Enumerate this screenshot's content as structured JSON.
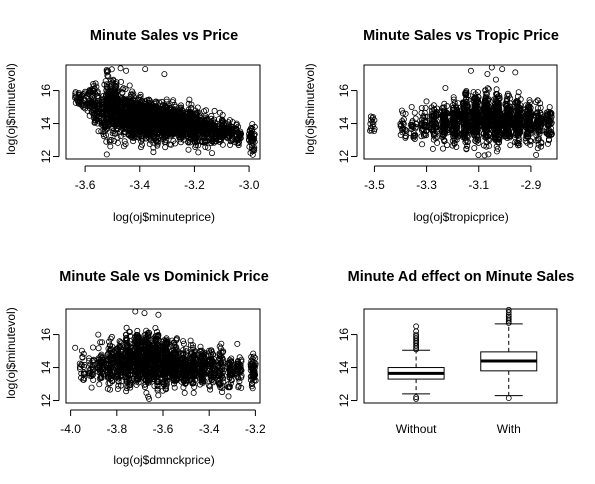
{
  "chart_data": [
    {
      "type": "scatter",
      "title": "Minute Sales vs Price",
      "xlabel": "log(oj$minuteprice)",
      "ylabel": "log(oj$minutevol)",
      "xlim": [
        -3.67,
        -2.96
      ],
      "ylim": [
        11.85,
        17.55
      ],
      "xticks": [
        -3.6,
        -3.4,
        -3.2,
        -3.0
      ],
      "xtick_labels": [
        "-3.6",
        "-3.4",
        "-3.2",
        "-3.0"
      ],
      "yticks": [
        12,
        14,
        16
      ],
      "ytick_labels": [
        "12",
        "14",
        "16"
      ],
      "marker": "open-circle",
      "color": "#000000",
      "trend": "negative",
      "clusters": [
        {
          "x": -3.63,
          "y_center": 15.6,
          "y_spread": 0.45,
          "n": 18
        },
        {
          "x": -3.61,
          "y_center": 15.5,
          "y_spread": 0.6,
          "n": 20
        },
        {
          "x": -3.58,
          "y_center": 15.4,
          "y_spread": 0.7,
          "n": 40
        },
        {
          "x": -3.56,
          "y_center": 15.0,
          "y_spread": 1.2,
          "n": 60
        },
        {
          "x": -3.53,
          "y_center": 14.8,
          "y_spread": 1.5,
          "n": 80
        },
        {
          "x": -3.51,
          "y_center": 15.0,
          "y_spread": 1.5,
          "n": 110
        },
        {
          "x": -3.49,
          "y_center": 14.8,
          "y_spread": 1.4,
          "n": 140
        },
        {
          "x": -3.46,
          "y_center": 14.5,
          "y_spread": 1.2,
          "n": 160
        },
        {
          "x": -3.43,
          "y_center": 14.4,
          "y_spread": 1.1,
          "n": 200
        },
        {
          "x": -3.4,
          "y_center": 14.3,
          "y_spread": 1.1,
          "n": 220
        },
        {
          "x": -3.37,
          "y_center": 14.2,
          "y_spread": 1.0,
          "n": 220
        },
        {
          "x": -3.34,
          "y_center": 14.1,
          "y_spread": 1.0,
          "n": 200
        },
        {
          "x": -3.31,
          "y_center": 14.1,
          "y_spread": 0.95,
          "n": 200
        },
        {
          "x": -3.28,
          "y_center": 14.0,
          "y_spread": 0.95,
          "n": 180
        },
        {
          "x": -3.25,
          "y_center": 13.9,
          "y_spread": 0.9,
          "n": 160
        },
        {
          "x": -3.22,
          "y_center": 13.9,
          "y_spread": 0.9,
          "n": 140
        },
        {
          "x": -3.19,
          "y_center": 13.8,
          "y_spread": 0.85,
          "n": 120
        },
        {
          "x": -3.16,
          "y_center": 13.7,
          "y_spread": 0.8,
          "n": 100
        },
        {
          "x": -3.13,
          "y_center": 13.6,
          "y_spread": 0.75,
          "n": 80
        },
        {
          "x": -3.1,
          "y_center": 13.6,
          "y_spread": 0.7,
          "n": 70
        },
        {
          "x": -3.07,
          "y_center": 13.5,
          "y_spread": 0.7,
          "n": 50
        },
        {
          "x": -3.04,
          "y_center": 13.3,
          "y_spread": 0.6,
          "n": 40
        },
        {
          "x": -2.99,
          "y_center": 13.1,
          "y_spread": 0.6,
          "n": 45
        }
      ],
      "outliers": [
        [
          -3.47,
          17.35
        ],
        [
          -3.45,
          17.2
        ],
        [
          -3.38,
          17.3
        ],
        [
          -3.31,
          17.0
        ],
        [
          -3.52,
          17.1
        ]
      ]
    },
    {
      "type": "scatter",
      "title": "Minute Sales vs Tropic Price",
      "xlabel": "log(oj$tropicprice)",
      "ylabel": "log(oj$minutevol)",
      "xlim": [
        -3.54,
        -2.8
      ],
      "ylim": [
        11.85,
        17.55
      ],
      "xticks": [
        -3.5,
        -3.3,
        -3.1,
        -2.9
      ],
      "xtick_labels": [
        "-3.5",
        "-3.3",
        "-3.1",
        "-2.9"
      ],
      "yticks": [
        12,
        14,
        16
      ],
      "ytick_labels": [
        "12",
        "14",
        "16"
      ],
      "marker": "open-circle",
      "color": "#000000",
      "trend": "none",
      "clusters": [
        {
          "x": -3.51,
          "y_center": 13.9,
          "y_spread": 0.7,
          "n": 14
        },
        {
          "x": -3.39,
          "y_center": 14.0,
          "y_spread": 0.9,
          "n": 20
        },
        {
          "x": -3.35,
          "y_center": 13.8,
          "y_spread": 0.9,
          "n": 25
        },
        {
          "x": -3.31,
          "y_center": 13.9,
          "y_spread": 1.0,
          "n": 40
        },
        {
          "x": -3.27,
          "y_center": 14.0,
          "y_spread": 1.0,
          "n": 60
        },
        {
          "x": -3.23,
          "y_center": 14.0,
          "y_spread": 1.1,
          "n": 90
        },
        {
          "x": -3.19,
          "y_center": 14.1,
          "y_spread": 1.2,
          "n": 120
        },
        {
          "x": -3.15,
          "y_center": 14.2,
          "y_spread": 1.3,
          "n": 160
        },
        {
          "x": -3.11,
          "y_center": 14.3,
          "y_spread": 1.3,
          "n": 200
        },
        {
          "x": -3.07,
          "y_center": 14.3,
          "y_spread": 1.3,
          "n": 220
        },
        {
          "x": -3.03,
          "y_center": 14.3,
          "y_spread": 1.3,
          "n": 220
        },
        {
          "x": -2.99,
          "y_center": 14.2,
          "y_spread": 1.2,
          "n": 200
        },
        {
          "x": -2.95,
          "y_center": 14.1,
          "y_spread": 1.1,
          "n": 150
        },
        {
          "x": -2.91,
          "y_center": 14.0,
          "y_spread": 1.0,
          "n": 110
        },
        {
          "x": -2.87,
          "y_center": 14.0,
          "y_spread": 1.0,
          "n": 80
        },
        {
          "x": -2.83,
          "y_center": 14.0,
          "y_spread": 1.0,
          "n": 60
        }
      ],
      "outliers": [
        [
          -3.05,
          17.4
        ],
        [
          -3.01,
          17.3
        ],
        [
          -2.96,
          17.1
        ],
        [
          -3.13,
          17.2
        ],
        [
          -2.88,
          12.1
        ]
      ]
    },
    {
      "type": "scatter",
      "title": "Minute Sale vs Dominick Price",
      "xlabel": "log(oj$dmnckprice)",
      "ylabel": "log(oj$minutevol)",
      "xlim": [
        -4.02,
        -3.18
      ],
      "ylim": [
        11.85,
        17.55
      ],
      "xticks": [
        -4.0,
        -3.8,
        -3.6,
        -3.4,
        -3.2
      ],
      "xtick_labels": [
        "-4.0",
        "-3.8",
        "-3.6",
        "-3.4",
        "-3.2"
      ],
      "yticks": [
        12,
        14,
        16
      ],
      "ytick_labels": [
        "12",
        "14",
        "16"
      ],
      "marker": "open-circle",
      "color": "#000000",
      "trend": "weak-negative",
      "clusters": [
        {
          "x": -3.95,
          "y_center": 14.0,
          "y_spread": 0.8,
          "n": 20
        },
        {
          "x": -3.91,
          "y_center": 14.0,
          "y_spread": 0.8,
          "n": 25
        },
        {
          "x": -3.87,
          "y_center": 14.1,
          "y_spread": 1.0,
          "n": 50
        },
        {
          "x": -3.83,
          "y_center": 14.2,
          "y_spread": 1.1,
          "n": 80
        },
        {
          "x": -3.79,
          "y_center": 14.3,
          "y_spread": 1.2,
          "n": 120
        },
        {
          "x": -3.75,
          "y_center": 14.4,
          "y_spread": 1.3,
          "n": 160
        },
        {
          "x": -3.71,
          "y_center": 14.5,
          "y_spread": 1.4,
          "n": 200
        },
        {
          "x": -3.67,
          "y_center": 14.5,
          "y_spread": 1.4,
          "n": 220
        },
        {
          "x": -3.63,
          "y_center": 14.4,
          "y_spread": 1.3,
          "n": 220
        },
        {
          "x": -3.59,
          "y_center": 14.3,
          "y_spread": 1.2,
          "n": 200
        },
        {
          "x": -3.55,
          "y_center": 14.2,
          "y_spread": 1.1,
          "n": 170
        },
        {
          "x": -3.51,
          "y_center": 14.1,
          "y_spread": 1.1,
          "n": 140
        },
        {
          "x": -3.47,
          "y_center": 14.0,
          "y_spread": 1.0,
          "n": 110
        },
        {
          "x": -3.43,
          "y_center": 14.0,
          "y_spread": 1.0,
          "n": 90
        },
        {
          "x": -3.39,
          "y_center": 13.9,
          "y_spread": 1.0,
          "n": 70
        },
        {
          "x": -3.35,
          "y_center": 13.9,
          "y_spread": 1.0,
          "n": 60
        },
        {
          "x": -3.31,
          "y_center": 13.8,
          "y_spread": 1.0,
          "n": 50
        },
        {
          "x": -3.27,
          "y_center": 13.8,
          "y_spread": 0.9,
          "n": 45
        },
        {
          "x": -3.21,
          "y_center": 13.8,
          "y_spread": 0.9,
          "n": 55
        }
      ],
      "outliers": [
        [
          -3.98,
          15.2
        ],
        [
          -3.88,
          16.0
        ],
        [
          -3.72,
          17.4
        ],
        [
          -3.68,
          17.3
        ],
        [
          -3.62,
          17.2
        ],
        [
          -3.66,
          12.1
        ]
      ]
    },
    {
      "type": "boxplot",
      "title": "Minute Ad effect on Minute Sales",
      "xlabel": "",
      "ylabel": "",
      "categories": [
        "Without",
        "With"
      ],
      "ylim": [
        11.85,
        17.55
      ],
      "yticks": [
        12,
        14,
        16
      ],
      "ytick_labels": [
        "12",
        "14",
        "16"
      ],
      "boxes": [
        {
          "name": "Without",
          "min": 12.4,
          "q1": 13.3,
          "median": 13.65,
          "q3": 14.0,
          "max": 15.05,
          "outliers_high": [
            15.1,
            15.2,
            15.3,
            15.4,
            15.5,
            15.6,
            15.7,
            15.8,
            15.9,
            16.0,
            16.2,
            16.5
          ],
          "outliers_low": [
            12.2,
            12.1
          ]
        },
        {
          "name": "With",
          "min": 12.3,
          "q1": 13.8,
          "median": 14.4,
          "q3": 14.95,
          "max": 16.65,
          "outliers_high": [
            16.7,
            16.8,
            16.9,
            17.0,
            17.1,
            17.2,
            17.35,
            17.5
          ],
          "outliers_low": [
            12.15
          ]
        }
      ]
    }
  ]
}
